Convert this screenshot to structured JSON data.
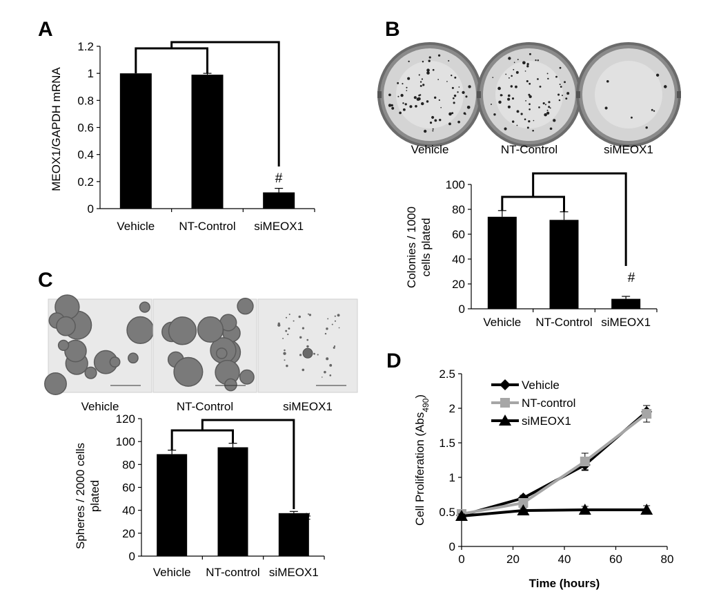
{
  "panels": {
    "A": "A",
    "B": "B",
    "C": "C",
    "D": "D"
  },
  "photos": {
    "B": {
      "labels": [
        "Vehicle",
        "NT-Control",
        "siMEOX1"
      ],
      "colony_density": [
        1.0,
        1.0,
        0.12
      ]
    },
    "C": {
      "labels": [
        "Vehicle",
        "NT-Control",
        "siMEOX1"
      ],
      "sphere_density": [
        1.0,
        1.0,
        0.3
      ]
    }
  },
  "colors": {
    "bar": "#000000",
    "nt_line": "#a6a6a6",
    "dish_rim": "#6b6b6b",
    "micro_bg": "#e9e9e9"
  },
  "chart_data": [
    {
      "id": "A",
      "type": "bar",
      "categories": [
        "Vehicle",
        "NT-Control",
        "siMEOX1"
      ],
      "values": [
        1.0,
        0.99,
        0.12
      ],
      "errors": [
        0.0,
        0.01,
        0.03
      ],
      "ylabel": "MEOX1/GAPDH mRNA",
      "ylim": [
        0,
        1.2
      ],
      "yticks": [
        "0",
        "0.2",
        "0.4",
        "0.6",
        "0.8",
        "1",
        "1.2"
      ],
      "significance": "#"
    },
    {
      "id": "B",
      "type": "bar",
      "categories": [
        "Vehicle",
        "NT-Control",
        "siMEOX1"
      ],
      "values": [
        74,
        71.5,
        8
      ],
      "errors": [
        5,
        6.5,
        2
      ],
      "ylabel": [
        "Colonies / 1000",
        "cells plated"
      ],
      "ylim": [
        0,
        100
      ],
      "yticks": [
        "0",
        "20",
        "40",
        "60",
        "80",
        "100"
      ],
      "significance": "#"
    },
    {
      "id": "C",
      "type": "bar",
      "categories": [
        "Vehicle",
        "NT-control",
        "siMEOX1"
      ],
      "values": [
        89,
        95,
        37.5
      ],
      "errors": [
        3.5,
        3.5,
        1.5
      ],
      "ylabel": [
        "Spheres / 2000 cells",
        "plated"
      ],
      "ylim": [
        0,
        120
      ],
      "yticks": [
        "0",
        "20",
        "40",
        "60",
        "80",
        "100",
        "120"
      ],
      "significance": "#"
    },
    {
      "id": "D",
      "type": "line",
      "x": [
        0,
        24,
        48,
        72
      ],
      "series": [
        {
          "name": "Vehicle",
          "values": [
            0.45,
            0.7,
            1.18,
            1.95
          ],
          "errors": [
            0.03,
            0.04,
            0.08,
            0.09
          ],
          "marker": "diamond",
          "color": "#000000"
        },
        {
          "name": "NT-control",
          "values": [
            0.47,
            0.63,
            1.23,
            1.92
          ],
          "errors": [
            0.03,
            0.04,
            0.12,
            0.12
          ],
          "marker": "square",
          "color": "#a6a6a6"
        },
        {
          "name": "siMEOX1",
          "values": [
            0.44,
            0.52,
            0.53,
            0.53
          ],
          "errors": [
            0.03,
            0.03,
            0.05,
            0.06
          ],
          "marker": "triangle",
          "color": "#000000"
        }
      ],
      "xlabel": "Time (hours)",
      "ylabel": "Cell Proliferation (Abs",
      "ylabel_sub": "490",
      "ylabel_close": ")",
      "xlim": [
        0,
        80
      ],
      "ylim": [
        0,
        2.5
      ],
      "xticks": [
        "0",
        "20",
        "40",
        "60",
        "80"
      ],
      "yticks": [
        "0",
        "0.5",
        "1",
        "1.5",
        "2",
        "2.5"
      ],
      "legend": "top-left"
    }
  ]
}
